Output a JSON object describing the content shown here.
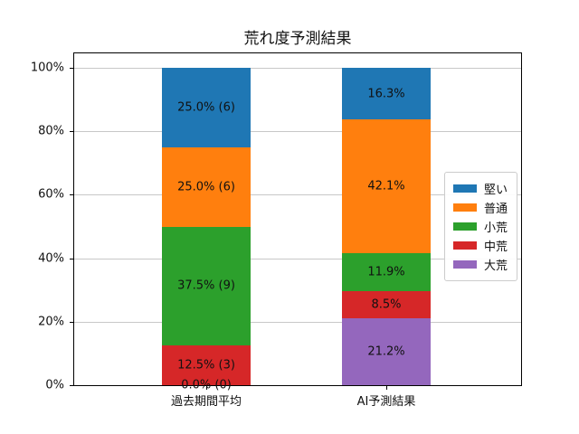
{
  "chart_data": {
    "type": "bar",
    "stacked": true,
    "title": "荒れ度予測結果",
    "categories": [
      "過去期間平均",
      "AI予測結果"
    ],
    "series": [
      {
        "name": "堅い",
        "color": "#1f77b4",
        "values": [
          25.0,
          16.3
        ],
        "labels": [
          "25.0% (6)",
          "16.3%"
        ]
      },
      {
        "name": "普通",
        "color": "#ff7f0e",
        "values": [
          25.0,
          42.1
        ],
        "labels": [
          "25.0% (6)",
          "42.1%"
        ]
      },
      {
        "name": "小荒",
        "color": "#2ca02c",
        "values": [
          37.5,
          11.9
        ],
        "labels": [
          "37.5% (9)",
          "11.9%"
        ]
      },
      {
        "name": "中荒",
        "color": "#d62728",
        "values": [
          12.5,
          8.5
        ],
        "labels": [
          "12.5% (3)",
          "8.5%"
        ]
      },
      {
        "name": "大荒",
        "color": "#9467bd",
        "values": [
          0.0,
          21.2
        ],
        "labels": [
          "0.0% (0)",
          "21.2%"
        ]
      }
    ],
    "stack_order_bottom_to_top": [
      "大荒",
      "中荒",
      "小荒",
      "普通",
      "堅い"
    ],
    "xlabel": "",
    "ylabel": "",
    "ylim": [
      0,
      100
    ],
    "yticks": [
      0,
      20,
      40,
      60,
      80,
      100
    ],
    "ytick_labels": [
      "0%",
      "20%",
      "40%",
      "60%",
      "80%",
      "100%"
    ],
    "grid": true,
    "legend": {
      "entries": [
        "堅い",
        "普通",
        "小荒",
        "中荒",
        "大荒"
      ],
      "position": "center-right-inside"
    },
    "colors": {
      "grid": "#c8c8c8",
      "spine": "#000000",
      "legend_border": "#cccccc",
      "background": "#ffffff"
    }
  }
}
